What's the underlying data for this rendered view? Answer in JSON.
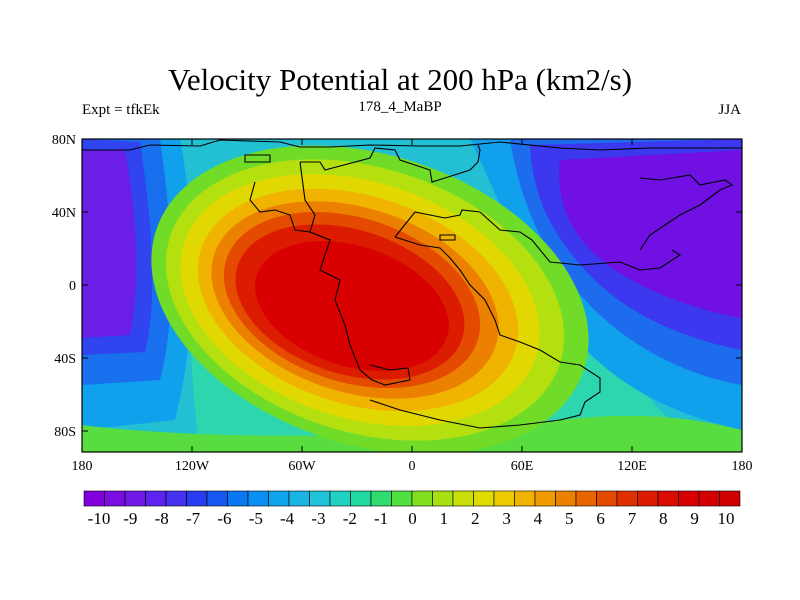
{
  "title": "Velocity Potential at 200 hPa (km2/s)",
  "left_string": "Expt = tfkEk",
  "center_string": "178_4_MaBP",
  "right_string": "JJA",
  "map": {
    "lon_range": [
      -180,
      180
    ],
    "lat_range": [
      -90,
      90
    ],
    "x_ticks": [
      "180",
      "120W",
      "60W",
      "0",
      "60E",
      "120E",
      "180"
    ],
    "y_ticks": [
      "80N",
      "40N",
      "0",
      "40S",
      "80S"
    ],
    "field_centers": [
      {
        "name": "divergence-center",
        "lon": -25,
        "lat": -10,
        "value": 10
      },
      {
        "name": "convergence-center-east",
        "lon": 130,
        "lat": 25,
        "value": -10
      },
      {
        "name": "convergence-center-west",
        "lon": -175,
        "lat": 25,
        "value": -10
      }
    ]
  },
  "colorbar": {
    "labels": [
      "-10",
      "-9",
      "-8",
      "-7",
      "-6",
      "-5",
      "-4",
      "-3",
      "-2",
      "-1",
      "0",
      "1",
      "2",
      "3",
      "4",
      "5",
      "6",
      "7",
      "8",
      "9",
      "10"
    ],
    "colors": [
      "#8200dc",
      "#7a0ee0",
      "#6f1ae6",
      "#5c24ec",
      "#4830f0",
      "#2a3cf2",
      "#1458f0",
      "#0a78f2",
      "#0a90f2",
      "#10a4ec",
      "#18b4e4",
      "#20c4d8",
      "#20d0c0",
      "#20d8a0",
      "#30dc70",
      "#50e040",
      "#80e020",
      "#a8e010",
      "#c8e008",
      "#e0dc00",
      "#eccc00",
      "#f0b400",
      "#f09c00",
      "#ec8000",
      "#e86400",
      "#e44a00",
      "#e03000",
      "#dc1c00",
      "#d80c00",
      "#d80000",
      "#d40000",
      "#d00000"
    ]
  }
}
